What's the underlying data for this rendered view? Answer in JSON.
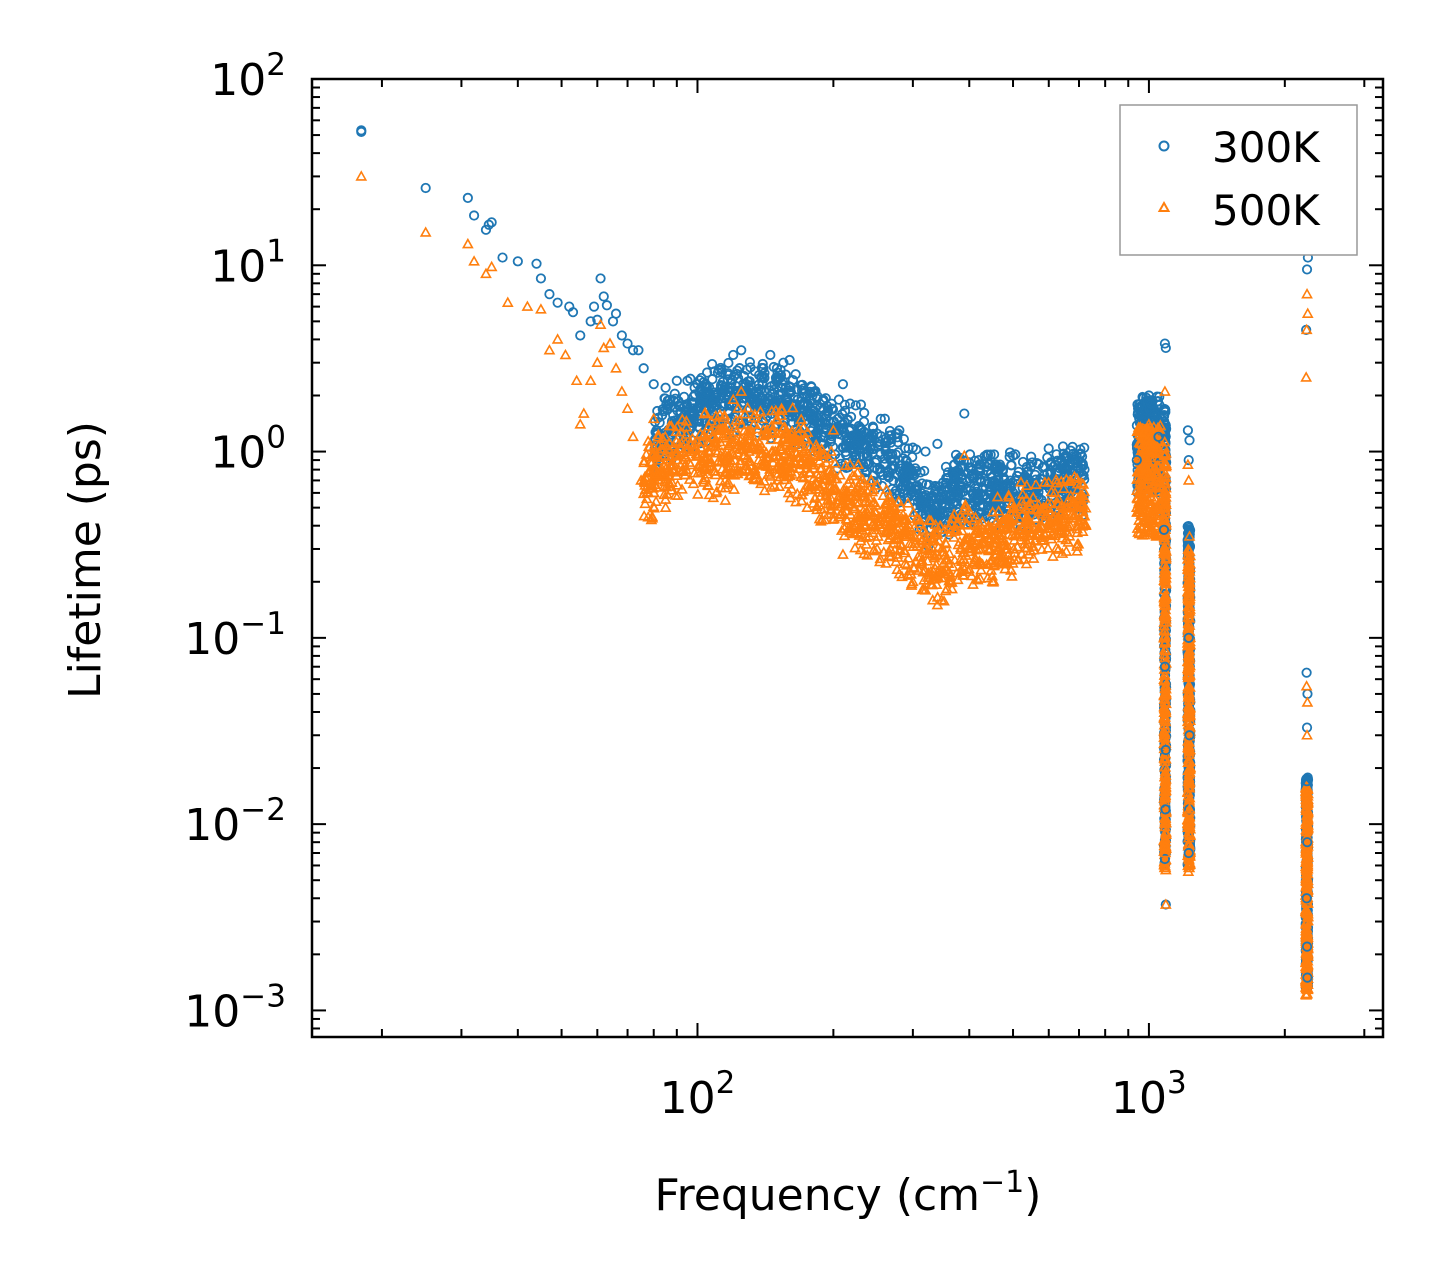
{
  "chart_data": {
    "type": "scatter",
    "title": "",
    "xlabel": "Frequency (cm",
    "xlabel_sup": "−1",
    "xlabel_tail": ")",
    "ylabel": "Lifetime (ps)",
    "xscale": "log",
    "yscale": "log",
    "xlim": [
      14,
      3300
    ],
    "ylim": [
      0.00072,
      100
    ],
    "x_ticks": [
      {
        "value": 100,
        "base": "10",
        "exp": "2"
      },
      {
        "value": 1000,
        "base": "10",
        "exp": "3"
      }
    ],
    "y_ticks": [
      {
        "value": 0.001,
        "base": "10",
        "exp": "−3"
      },
      {
        "value": 0.01,
        "base": "10",
        "exp": "−2"
      },
      {
        "value": 0.1,
        "base": "10",
        "exp": "−1"
      },
      {
        "value": 1,
        "base": "10",
        "exp": "0"
      },
      {
        "value": 10,
        "base": "10",
        "exp": "1"
      },
      {
        "value": 100,
        "base": "10",
        "exp": "2"
      }
    ],
    "legend": {
      "placement": "top-right",
      "entries": [
        "300K",
        "500K"
      ]
    },
    "series": [
      {
        "name": "300K",
        "marker": "circle",
        "color": "#1f77b4",
        "points": [
          [
            18,
            52
          ],
          [
            18,
            53
          ],
          [
            25,
            26
          ],
          [
            31,
            23
          ],
          [
            32,
            18.5
          ],
          [
            34,
            15.5
          ],
          [
            34.5,
            16.5
          ],
          [
            35,
            17
          ],
          [
            37,
            11
          ],
          [
            40,
            10.5
          ],
          [
            44,
            10.2
          ],
          [
            45,
            8.5
          ],
          [
            47,
            7
          ],
          [
            49,
            6.3
          ],
          [
            52,
            6
          ],
          [
            53,
            5.6
          ],
          [
            55,
            4.2
          ],
          [
            58,
            5
          ],
          [
            59,
            6
          ],
          [
            60,
            5.1
          ],
          [
            61,
            8.5
          ],
          [
            62,
            6.8
          ],
          [
            63,
            6.1
          ],
          [
            65,
            5
          ],
          [
            66,
            5.5
          ],
          [
            68,
            4.2
          ],
          [
            70,
            3.8
          ],
          [
            72,
            3.5
          ],
          [
            74,
            3.5
          ],
          [
            76,
            2.8
          ],
          [
            80,
            2.3
          ],
          [
            85,
            2.2
          ],
          [
            90,
            2.4
          ],
          [
            95,
            2.4
          ],
          [
            100,
            2.3
          ],
          [
            105,
            2.1
          ],
          [
            110,
            2.0
          ],
          [
            115,
            2.2
          ],
          [
            120,
            3.3
          ],
          [
            125,
            3.5
          ],
          [
            130,
            2.2
          ],
          [
            140,
            2.8
          ],
          [
            145,
            3.3
          ],
          [
            150,
            2.8
          ],
          [
            155,
            3.0
          ],
          [
            160,
            3.1
          ],
          [
            165,
            2.6
          ],
          [
            175,
            2.0
          ],
          [
            190,
            1.9
          ],
          [
            210,
            2.3
          ],
          [
            240,
            1.2
          ],
          [
            260,
            1.5
          ],
          [
            280,
            1.3
          ],
          [
            300,
            1.05
          ],
          [
            320,
            1.0
          ],
          [
            340,
            1.1
          ],
          [
            370,
            0.85
          ],
          [
            390,
            1.6
          ],
          [
            420,
            0.9
          ],
          [
            460,
            0.85
          ],
          [
            500,
            0.95
          ],
          [
            560,
            0.75
          ],
          [
            620,
            0.85
          ],
          [
            680,
            0.9
          ],
          [
            720,
            0.8
          ],
          [
            940,
            0.9
          ],
          [
            980,
            1.5
          ],
          [
            1000,
            2.0
          ],
          [
            1010,
            1.8
          ],
          [
            1050,
            1.2
          ],
          [
            1085,
            3.8
          ],
          [
            1090,
            3.6
          ],
          [
            1080,
            0.38
          ],
          [
            1085,
            0.07
          ],
          [
            1090,
            0.025
          ],
          [
            1088,
            0.012
          ],
          [
            1085,
            0.0065
          ],
          [
            1090,
            0.0037
          ],
          [
            1220,
            1.3
          ],
          [
            1230,
            1.15
          ],
          [
            1225,
            0.9
          ],
          [
            1230,
            0.38
          ],
          [
            1225,
            0.1
          ],
          [
            1230,
            0.03
          ],
          [
            1228,
            0.012
          ],
          [
            1225,
            0.007
          ],
          [
            2230,
            4.5
          ],
          [
            2240,
            9.5
          ],
          [
            2250,
            11
          ],
          [
            2235,
            0.065
          ],
          [
            2245,
            0.05
          ],
          [
            2240,
            0.033
          ],
          [
            2238,
            0.017
          ],
          [
            2242,
            0.008
          ],
          [
            2236,
            0.004
          ],
          [
            2240,
            0.0022
          ],
          [
            2244,
            0.0015
          ]
        ]
      },
      {
        "name": "500K",
        "marker": "triangle",
        "color": "#ff7f0e",
        "points": [
          [
            18,
            30
          ],
          [
            25,
            15
          ],
          [
            31,
            13
          ],
          [
            32,
            10.5
          ],
          [
            34,
            9
          ],
          [
            35,
            9.8
          ],
          [
            38,
            6.3
          ],
          [
            42,
            6
          ],
          [
            45,
            5.8
          ],
          [
            47,
            3.5
          ],
          [
            49,
            4
          ],
          [
            51,
            3.3
          ],
          [
            54,
            2.4
          ],
          [
            55,
            1.4
          ],
          [
            56,
            1.6
          ],
          [
            58,
            2.4
          ],
          [
            60,
            3.0
          ],
          [
            61,
            4.8
          ],
          [
            62,
            3.6
          ],
          [
            64,
            3.8
          ],
          [
            66,
            2.8
          ],
          [
            68,
            2.1
          ],
          [
            70,
            1.7
          ],
          [
            72,
            1.2
          ],
          [
            75,
            0.7
          ],
          [
            80,
            1.5
          ],
          [
            85,
            0.5
          ],
          [
            90,
            0.9
          ],
          [
            100,
            0.95
          ],
          [
            110,
            0.6
          ],
          [
            115,
            0.75
          ],
          [
            120,
            1.9
          ],
          [
            125,
            2.1
          ],
          [
            130,
            1.0
          ],
          [
            140,
            1.3
          ],
          [
            150,
            1.5
          ],
          [
            160,
            1.2
          ],
          [
            175,
            0.5
          ],
          [
            190,
            0.75
          ],
          [
            200,
            1.3
          ],
          [
            210,
            0.28
          ],
          [
            230,
            0.45
          ],
          [
            250,
            0.3
          ],
          [
            280,
            0.22
          ],
          [
            300,
            0.2
          ],
          [
            320,
            0.18
          ],
          [
            340,
            0.15
          ],
          [
            360,
            0.25
          ],
          [
            390,
            0.95
          ],
          [
            420,
            0.3
          ],
          [
            450,
            0.2
          ],
          [
            500,
            0.5
          ],
          [
            560,
            0.33
          ],
          [
            620,
            0.4
          ],
          [
            680,
            0.45
          ],
          [
            720,
            0.45
          ],
          [
            940,
            0.5
          ],
          [
            980,
            1.0
          ],
          [
            1000,
            1.4
          ],
          [
            1010,
            0.8
          ],
          [
            1050,
            0.5
          ],
          [
            1085,
            2.1
          ],
          [
            1088,
            0.15
          ],
          [
            1090,
            0.05
          ],
          [
            1085,
            0.015
          ],
          [
            1088,
            0.007
          ],
          [
            1090,
            0.0037
          ],
          [
            1220,
            0.85
          ],
          [
            1225,
            0.7
          ],
          [
            1230,
            0.35
          ],
          [
            1228,
            0.2
          ],
          [
            1225,
            0.05
          ],
          [
            1230,
            0.012
          ],
          [
            1226,
            0.006
          ],
          [
            2230,
            2.5
          ],
          [
            2240,
            7
          ],
          [
            2248,
            5.5
          ],
          [
            2236,
            4.5
          ],
          [
            2235,
            0.055
          ],
          [
            2244,
            0.045
          ],
          [
            2240,
            0.03
          ],
          [
            2238,
            0.012
          ],
          [
            2242,
            0.006
          ],
          [
            2236,
            0.003
          ],
          [
            2240,
            0.0018
          ],
          [
            2244,
            0.0013
          ]
        ]
      }
    ],
    "bands": [
      {
        "series": "300K",
        "x": [
          80,
          720
        ],
        "y": [
          [
            80,
            1.2
          ],
          [
            100,
            1.7
          ],
          [
            120,
            2.0
          ],
          [
            160,
            1.8
          ],
          [
            200,
            1.3
          ],
          [
            250,
            1.0
          ],
          [
            300,
            0.7
          ],
          [
            330,
            0.45
          ],
          [
            370,
            0.6
          ],
          [
            450,
            0.65
          ],
          [
            550,
            0.6
          ],
          [
            650,
            0.7
          ],
          [
            720,
            0.72
          ]
        ],
        "spread": 0.22
      },
      {
        "series": "500K",
        "x": [
          76,
          730
        ],
        "y": [
          [
            76,
            0.7
          ],
          [
            100,
            0.95
          ],
          [
            130,
            1.0
          ],
          [
            170,
            0.95
          ],
          [
            210,
            0.55
          ],
          [
            250,
            0.45
          ],
          [
            300,
            0.32
          ],
          [
            340,
            0.25
          ],
          [
            380,
            0.3
          ],
          [
            450,
            0.33
          ],
          [
            550,
            0.4
          ],
          [
            650,
            0.45
          ],
          [
            730,
            0.48
          ]
        ],
        "spread": 0.26
      }
    ],
    "columns": [
      {
        "series": "300K",
        "x": [
          940,
          1060
        ],
        "y": [
          0.6,
          2.0
        ]
      },
      {
        "series": "500K",
        "x": [
          940,
          1060
        ],
        "y": [
          0.35,
          1.4
        ]
      },
      {
        "series": "300K",
        "x": [
          1080,
          1092
        ],
        "y": [
          0.006,
          1.7
        ]
      },
      {
        "series": "500K",
        "x": [
          1080,
          1092
        ],
        "y": [
          0.0055,
          1.2
        ]
      },
      {
        "series": "300K",
        "x": [
          1218,
          1235
        ],
        "y": [
          0.006,
          0.4
        ]
      },
      {
        "series": "500K",
        "x": [
          1218,
          1235
        ],
        "y": [
          0.0055,
          0.3
        ]
      },
      {
        "series": "300K",
        "x": [
          2225,
          2252
        ],
        "y": [
          0.0013,
          0.018
        ]
      },
      {
        "series": "500K",
        "x": [
          2225,
          2252
        ],
        "y": [
          0.0012,
          0.016
        ]
      }
    ]
  }
}
